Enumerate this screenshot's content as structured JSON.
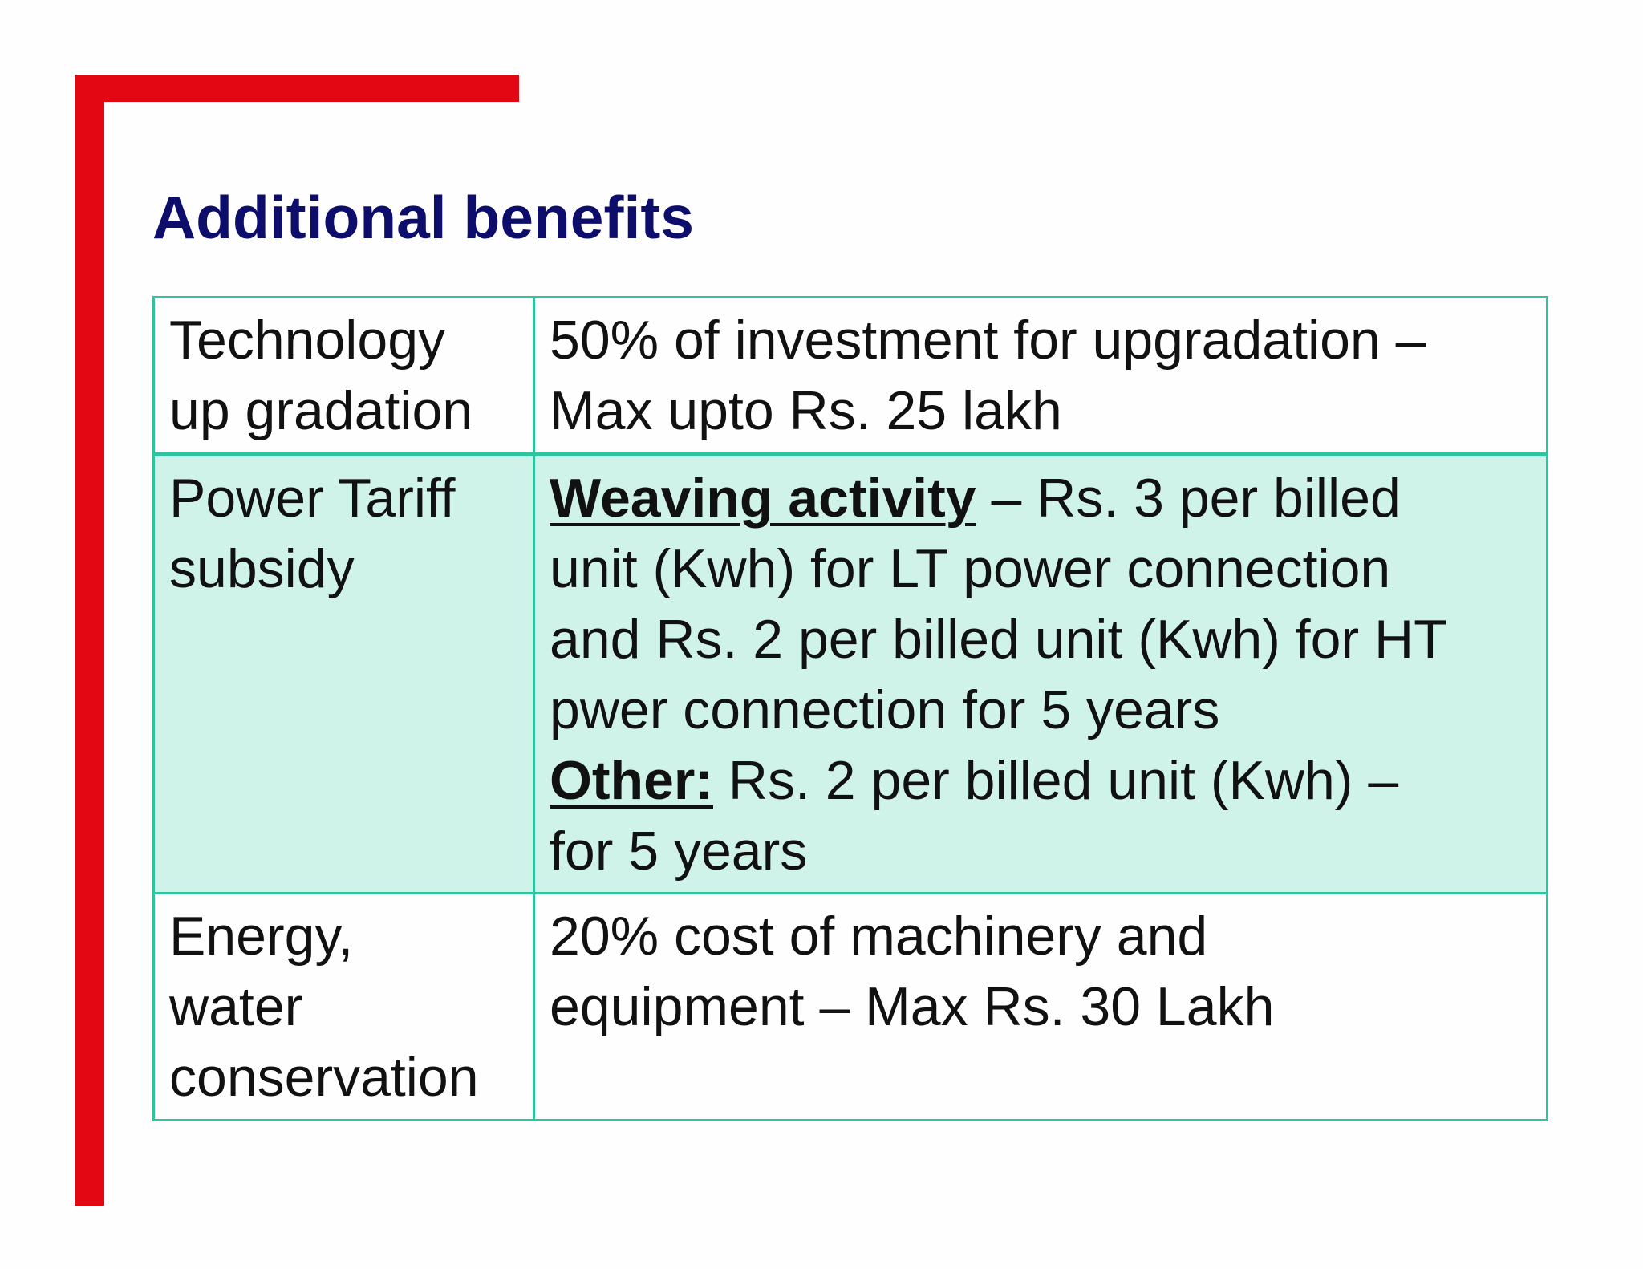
{
  "slide": {
    "title": "Additional benefits",
    "accent_color": "#e30613",
    "title_color": "#0d0d6b",
    "table_border_color": "#2ec4a0",
    "highlight_row_color": "#cff2e9"
  },
  "table": {
    "rows": [
      {
        "label_lines": [
          "Technology",
          "up gradation"
        ],
        "detail_lines": [
          "50% of investment for upgradation –",
          "Max upto Rs. 25 lakh"
        ]
      },
      {
        "label_lines": [
          "Power Tariff",
          "subsidy"
        ],
        "weaving_label": "Weaving activity",
        "weaving_lines": [
          " – Rs. 3 per billed",
          "unit (Kwh) for LT power connection",
          "and Rs. 2 per billed unit (Kwh) for HT",
          "pwer connection for 5 years"
        ],
        "other_label": "Other:",
        "other_lines": [
          " Rs. 2 per billed unit (Kwh) –",
          "for 5 years"
        ]
      },
      {
        "label_lines": [
          "Energy,",
          "water",
          "conservation"
        ],
        "detail_lines": [
          "20% cost of machinery and",
          "equipment – Max Rs. 30 Lakh"
        ]
      }
    ]
  }
}
